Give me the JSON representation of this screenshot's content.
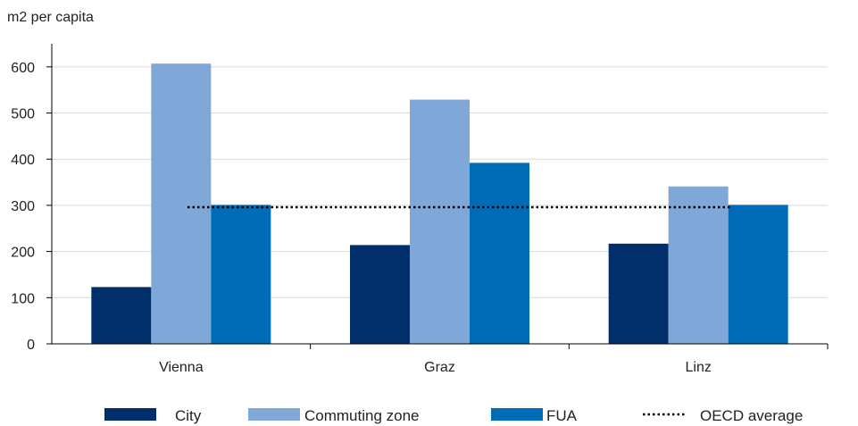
{
  "chart_data": {
    "type": "bar",
    "title": "",
    "xlabel": "",
    "ylabel": "m2 per capita",
    "categories": [
      "Vienna",
      "Graz",
      "Linz"
    ],
    "ylim": [
      0,
      650
    ],
    "yticks": [
      0,
      100,
      200,
      300,
      400,
      500,
      600
    ],
    "grid": "horizontal",
    "legend_position": "bottom",
    "series": [
      {
        "name": "City",
        "color": "#002f6c",
        "values": [
          123,
          214,
          217
        ]
      },
      {
        "name": "Commuting zone",
        "color": "#7fa8d8",
        "values": [
          607,
          529,
          341
        ]
      },
      {
        "name": "FUA",
        "color": "#006bb6",
        "values": [
          301,
          392,
          301
        ]
      }
    ],
    "reference_line": {
      "name": "OECD average",
      "value": 296,
      "style": "dotted",
      "color": "#000000"
    }
  }
}
